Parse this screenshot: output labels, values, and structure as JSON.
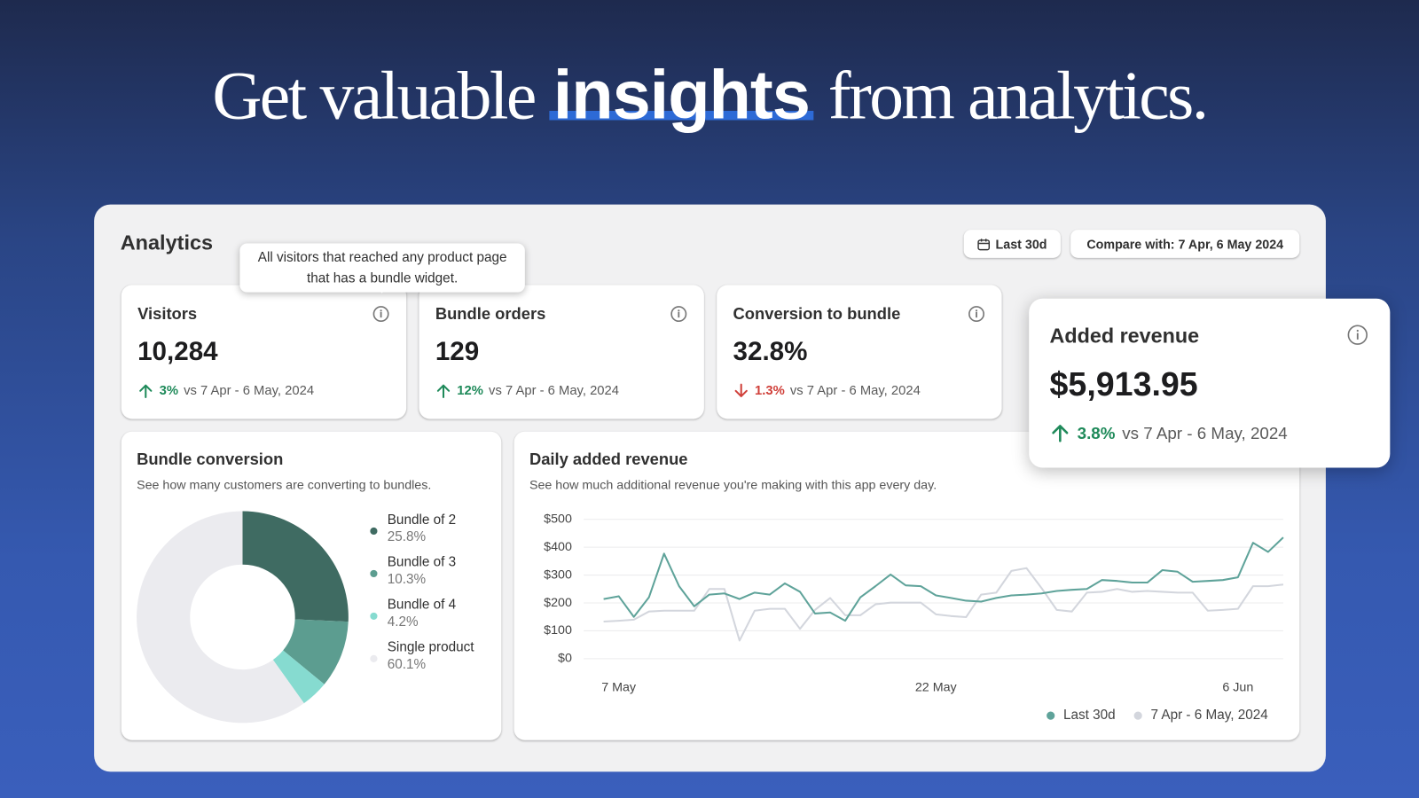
{
  "headline": {
    "before": "Get valuable",
    "emphasis": "insights",
    "after": "from analytics."
  },
  "panel": {
    "title": "Analytics",
    "date_button": "Last 30d",
    "compare_button": "Compare with: 7 Apr, 6 May 2024",
    "tooltip": "All visitors that reached any product page that has a bundle widget."
  },
  "cards": [
    {
      "title": "Visitors",
      "value": "10,284",
      "change": "3%",
      "direction": "up",
      "comparison": "vs 7 Apr - 6 May, 2024"
    },
    {
      "title": "Bundle orders",
      "value": "129",
      "change": "12%",
      "direction": "up",
      "comparison": "vs 7 Apr - 6 May, 2024"
    },
    {
      "title": "Conversion to bundle",
      "value": "32.8%",
      "change": "1.3%",
      "direction": "down",
      "comparison": "vs 7 Apr - 6 May, 2024"
    },
    {
      "title": "Added revenue",
      "value": "$5,913.95",
      "change": "3.8%",
      "direction": "up",
      "comparison": "vs 7 Apr - 6 May, 2024"
    }
  ],
  "chart_data": [
    {
      "type": "pie",
      "donut": true,
      "title": "Bundle conversion",
      "subtitle": "See how many customers are converting to bundles.",
      "categories": [
        "Bundle of 2",
        "Bundle of 3",
        "Bundle of 4",
        "Single product"
      ],
      "values": [
        25.8,
        10.3,
        4.2,
        60.1
      ],
      "value_labels": [
        "25.8%",
        "10.3%",
        "4.2%",
        "60.1%"
      ],
      "colors": [
        "#3f6b62",
        "#5c9d90",
        "#86dbd0",
        "#ebebef"
      ]
    },
    {
      "type": "line",
      "title": "Daily added revenue",
      "subtitle": "See how much additional revenue you're making with this app every day.",
      "categories": [
        null,
        "7 May",
        null,
        null,
        null,
        null,
        null,
        null,
        null,
        null,
        null,
        null,
        null,
        null,
        null,
        null,
        null,
        null,
        null,
        null,
        null,
        null,
        "22 May",
        null,
        null,
        null,
        null,
        null,
        null,
        null,
        null,
        null,
        null,
        null,
        null,
        null,
        null,
        null,
        null,
        null,
        null,
        null,
        "6 Jun",
        null,
        null,
        null
      ],
      "series": [
        {
          "name": "Last 30d",
          "color": "#5fa39a",
          "values": [
            214,
            224,
            150,
            220,
            377,
            260,
            188,
            230,
            234,
            214,
            237,
            230,
            270,
            240,
            162,
            166,
            136,
            220,
            260,
            302,
            263,
            260,
            227,
            218,
            208,
            205,
            218,
            227,
            230,
            234,
            243,
            247,
            250,
            282,
            279,
            273,
            273,
            318,
            312,
            276,
            279,
            282,
            292,
            416,
            383,
            435
          ]
        },
        {
          "name": "7 Apr - 6 May, 2024",
          "color": "#d3d6dd",
          "values": [
            133,
            136,
            140,
            169,
            172,
            172,
            172,
            250,
            250,
            65,
            172,
            179,
            179,
            107,
            175,
            218,
            156,
            156,
            195,
            201,
            201,
            201,
            159,
            153,
            149,
            230,
            237,
            315,
            325,
            253,
            175,
            169,
            237,
            240,
            250,
            240,
            243,
            240,
            237,
            237,
            172,
            175,
            179,
            260,
            260,
            266
          ]
        }
      ],
      "ylim": [
        0,
        500
      ],
      "yticks": [
        {
          "value": 0,
          "label": "$0"
        },
        {
          "value": 100,
          "label": "$100"
        },
        {
          "value": 200,
          "label": "$200"
        },
        {
          "value": 300,
          "label": "$300"
        },
        {
          "value": 400,
          "label": "$400"
        },
        {
          "value": 500,
          "label": "$500"
        }
      ],
      "grid": true
    }
  ]
}
